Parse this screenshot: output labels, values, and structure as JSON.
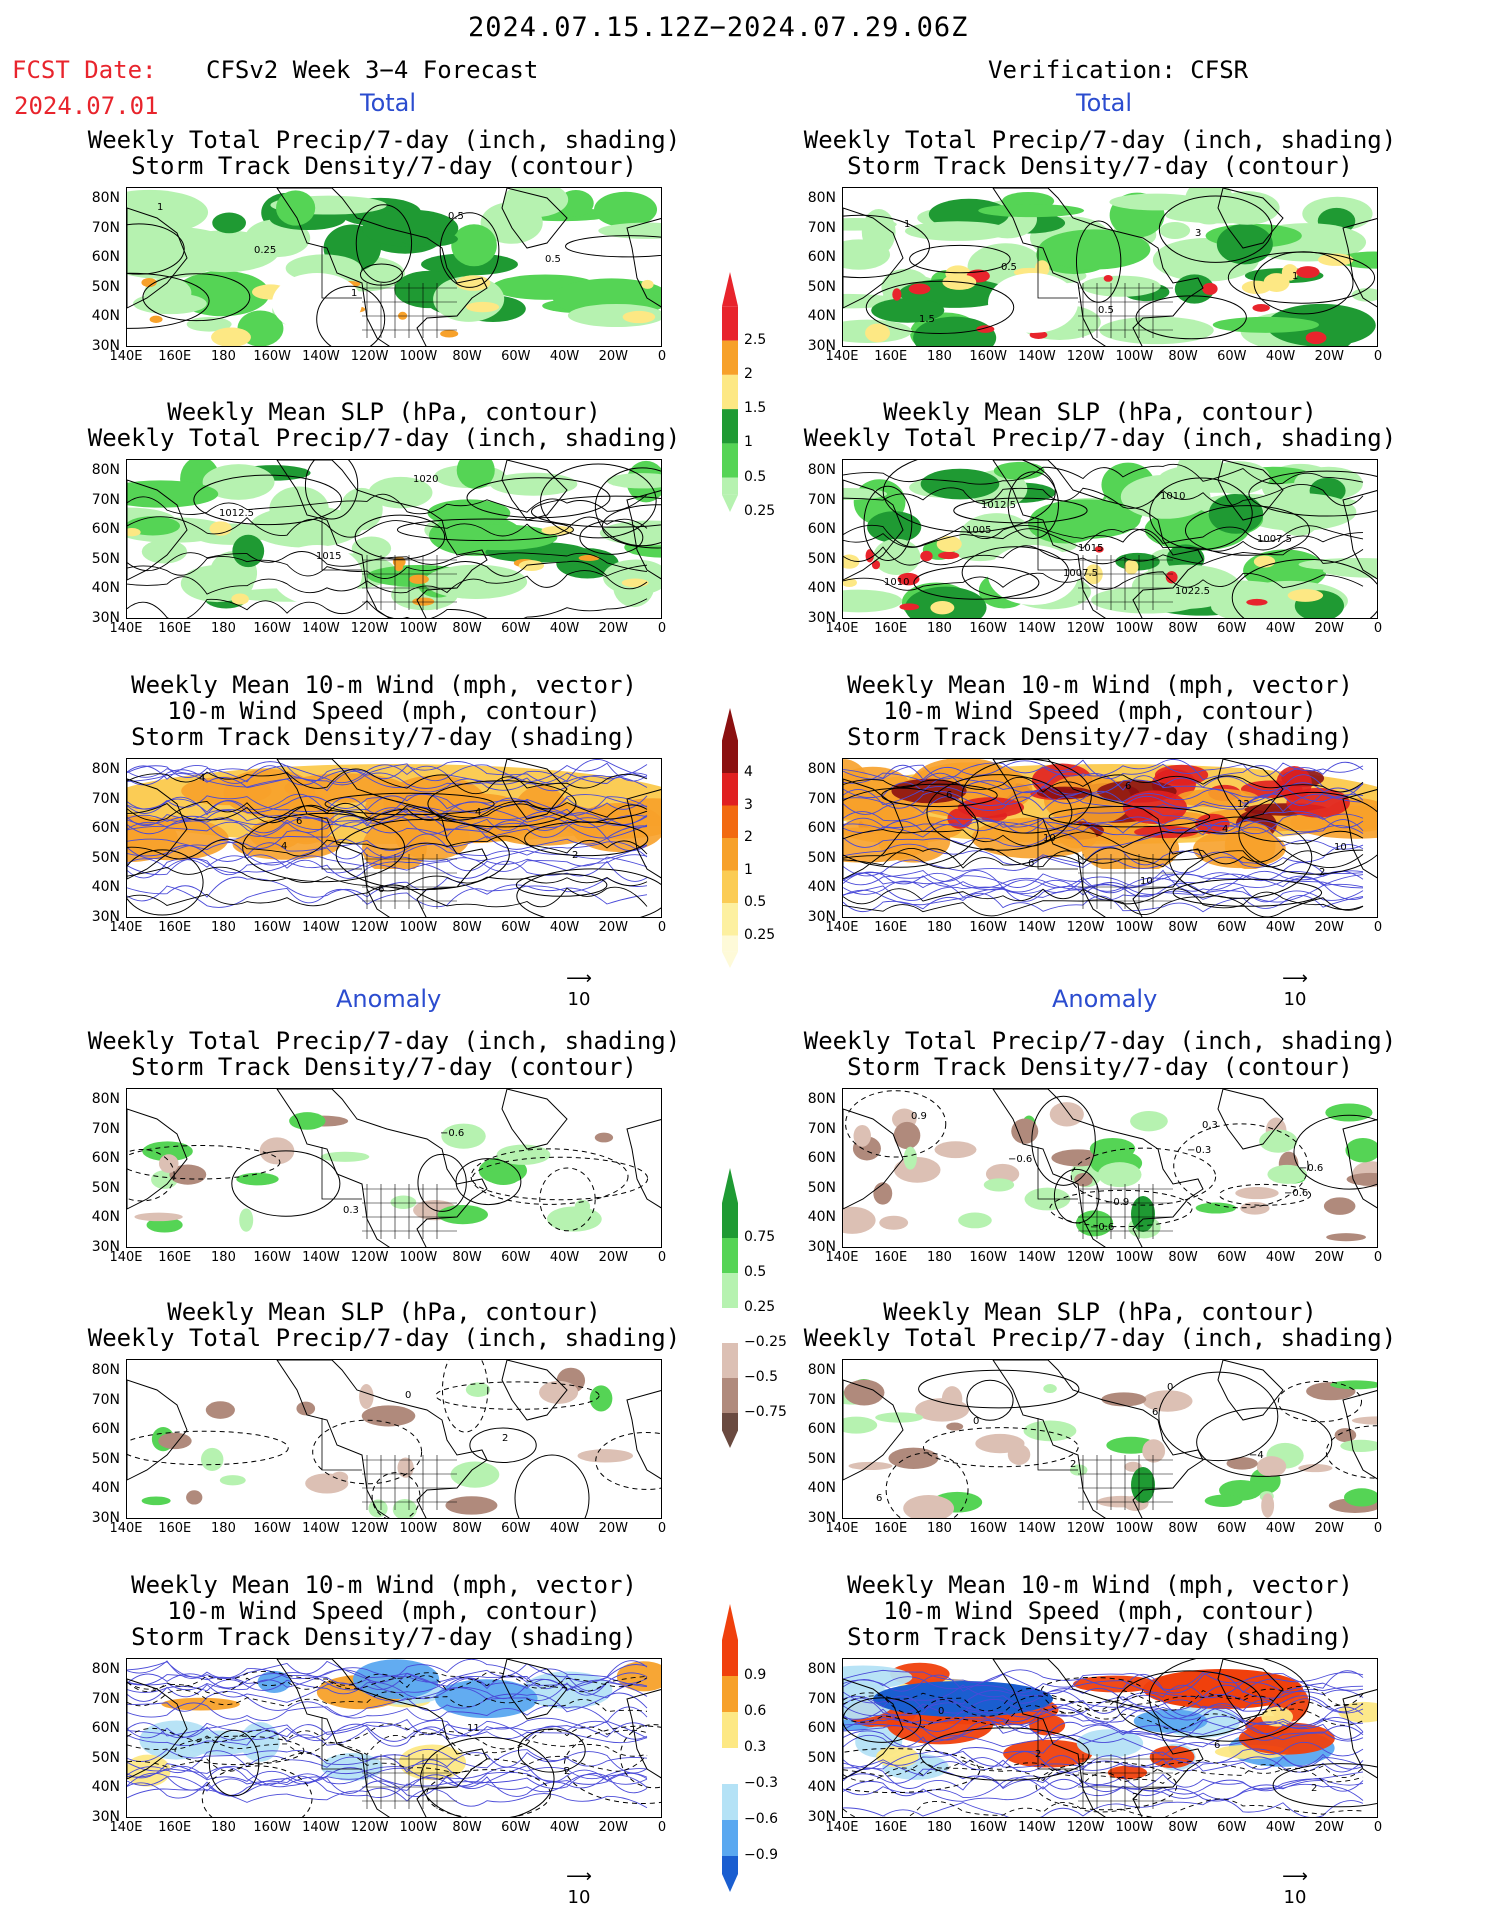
{
  "header": {
    "period": "2024.07.15.12Z−2024.07.29.06Z",
    "fcst_label": "FCST Date:",
    "fcst_date": "2024.07.01",
    "model_title": "CFSv2 Week 3−4 Forecast",
    "verification": "Verification: CFSR"
  },
  "sections": {
    "total": "Total",
    "anomaly": "Anomaly"
  },
  "panel_titles": {
    "precip_track": [
      "Weekly Total Precip/7-day (inch, shading)",
      "Storm Track Density/7-day (contour)"
    ],
    "slp_precip": [
      "Weekly Mean SLP (hPa, contour)",
      "Weekly Total Precip/7-day (inch, shading)"
    ],
    "wind_track": [
      "Weekly Mean 10-m Wind (mph, vector)",
      "10-m Wind Speed (mph, contour)",
      "Storm Track Density/7-day (shading)"
    ]
  },
  "axes": {
    "lat_ticks": [
      "80N",
      "70N",
      "60N",
      "50N",
      "40N",
      "30N"
    ],
    "lon_ticks": [
      "140E",
      "160E",
      "180",
      "160W",
      "140W",
      "120W",
      "100W",
      "80W",
      "60W",
      "40W",
      "20W",
      "0"
    ]
  },
  "colorbars": {
    "precip_total": {
      "labels": [
        "2.5",
        "2",
        "1.5",
        "1",
        "0.5",
        "0.25"
      ],
      "colors": [
        "#e8242c",
        "#f7a12a",
        "#fde884",
        "#1f9a33",
        "#55d455",
        "#b6f2b0"
      ]
    },
    "track_total": {
      "labels": [
        "4",
        "3",
        "2",
        "1",
        "0.5",
        "0.25"
      ],
      "colors": [
        "#8b1010",
        "#e02020",
        "#f26a10",
        "#f7a12a",
        "#fbcc55",
        "#fdf0a0",
        "#fefad8"
      ]
    },
    "precip_anom": {
      "labels": [
        "0.75",
        "0.5",
        "0.25",
        "−0.25",
        "−0.5",
        "−0.75"
      ],
      "colors": [
        "#1f9a33",
        "#55d455",
        "#b6f2b0",
        "#ffffff",
        "#dcc0b4",
        "#b08a7c",
        "#6a4a40"
      ]
    },
    "track_anom": {
      "labels": [
        "0.9",
        "0.6",
        "0.3",
        "−0.3",
        "−0.6",
        "−0.9"
      ],
      "colors": [
        "#f0400c",
        "#f7a12a",
        "#fde884",
        "#ffffff",
        "#b4e2f6",
        "#5aa8f0",
        "#1a5ed0"
      ]
    }
  },
  "vector_ref": "10",
  "contour_labels": {
    "m1": [
      "1",
      "0.25",
      "1",
      "0.5",
      "0.5"
    ],
    "m2": [
      "1",
      "0.5",
      "0.5",
      "3",
      "1",
      "1.5"
    ],
    "m3": [
      "1012.5",
      "1015",
      "1020"
    ],
    "m4": [
      "1005",
      "1007.5",
      "1010",
      "1007.5",
      "1010",
      "1012.5",
      "1015",
      "1022.5"
    ],
    "m5": [
      "4",
      "6",
      "4",
      "2",
      "4",
      "6"
    ],
    "m6": [
      "6",
      "6",
      "4",
      "2",
      "6",
      "10",
      "10",
      "12",
      "10"
    ],
    "m7": [
      "0.3",
      "−0.6"
    ],
    "m8": [
      "−0.6",
      "−0.3",
      "−0.6",
      "0.9",
      "−0.6",
      "−0.9",
      "0.3",
      "−0.6"
    ],
    "m9": [
      "0",
      "2"
    ],
    "m10": [
      "6",
      "−4",
      "6",
      "0",
      "2",
      "0"
    ],
    "m11": [
      "11",
      "2"
    ],
    "m12": [
      "6",
      "2",
      "0",
      "2",
      "2"
    ]
  }
}
